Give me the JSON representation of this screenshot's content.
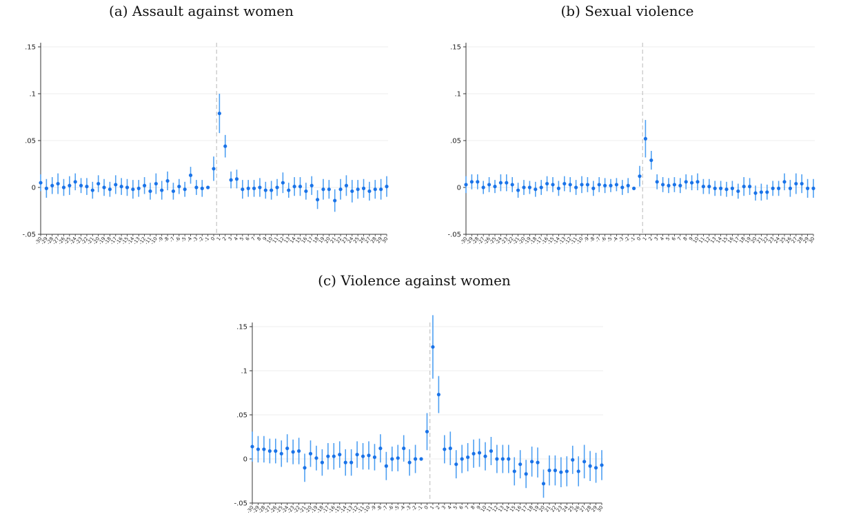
{
  "chart_data": [
    {
      "type": "scatter",
      "title": "(a) Assault against women",
      "xlabel": "",
      "ylabel": "",
      "xlim": [
        -30,
        30
      ],
      "ylim": [
        -0.05,
        0.15
      ],
      "yticks": [
        -0.05,
        0,
        0.05,
        0.1,
        0.15
      ],
      "ytick_labels": [
        "-.05",
        "0",
        ".05",
        ".1",
        ".15"
      ],
      "grid": true,
      "reference_line_x": 0.5,
      "x": [
        -30,
        -29,
        -28,
        -27,
        -26,
        -25,
        -24,
        -23,
        -22,
        -21,
        -20,
        -19,
        -18,
        -17,
        -16,
        -15,
        -14,
        -13,
        -12,
        -11,
        -10,
        -9,
        -8,
        -7,
        -6,
        -5,
        -4,
        -3,
        -2,
        -1,
        0,
        1,
        2,
        3,
        4,
        5,
        6,
        7,
        8,
        9,
        10,
        11,
        12,
        13,
        14,
        15,
        16,
        17,
        18,
        19,
        20,
        21,
        22,
        23,
        24,
        25,
        26,
        27,
        28,
        29,
        30
      ],
      "estimates": [
        0.005,
        -0.001,
        0.002,
        0.004,
        0.0,
        0.002,
        0.006,
        0.002,
        0.001,
        -0.003,
        0.004,
        0.0,
        -0.002,
        0.003,
        0.001,
        0.0,
        -0.002,
        -0.001,
        0.002,
        -0.004,
        0.004,
        -0.003,
        0.007,
        -0.004,
        0.001,
        -0.002,
        0.013,
        0.0,
        -0.001,
        0.0,
        0.02,
        0.079,
        0.044,
        0.008,
        0.009,
        -0.002,
        -0.001,
        -0.001,
        0.0,
        -0.003,
        -0.003,
        0.0,
        0.005,
        -0.003,
        0.001,
        0.001,
        -0.004,
        0.002,
        -0.013,
        -0.002,
        -0.002,
        -0.014,
        -0.002,
        0.002,
        -0.004,
        -0.002,
        -0.001,
        -0.004,
        -0.002,
        -0.002,
        0.001
      ],
      "ci_half": [
        0.009,
        0.01,
        0.009,
        0.011,
        0.009,
        0.01,
        0.009,
        0.008,
        0.009,
        0.009,
        0.009,
        0.009,
        0.008,
        0.01,
        0.009,
        0.009,
        0.01,
        0.009,
        0.009,
        0.009,
        0.011,
        0.01,
        0.01,
        0.009,
        0.008,
        0.008,
        0.009,
        0.008,
        0.009,
        0.001,
        0.013,
        0.021,
        0.012,
        0.009,
        0.01,
        0.01,
        0.009,
        0.009,
        0.01,
        0.009,
        0.01,
        0.009,
        0.011,
        0.008,
        0.01,
        0.01,
        0.009,
        0.01,
        0.01,
        0.011,
        0.01,
        0.012,
        0.011,
        0.011,
        0.012,
        0.01,
        0.01,
        0.01,
        0.01,
        0.011,
        0.011
      ]
    },
    {
      "type": "scatter",
      "title": "(b) Sexual violence",
      "xlabel": "",
      "ylabel": "",
      "xlim": [
        -30,
        30
      ],
      "ylim": [
        -0.05,
        0.15
      ],
      "yticks": [
        -0.05,
        0,
        0.05,
        0.1,
        0.15
      ],
      "ytick_labels": [
        "-.05",
        "0",
        ".05",
        ".1",
        ".15"
      ],
      "grid": true,
      "reference_line_x": 0.5,
      "x": [
        -30,
        -29,
        -28,
        -27,
        -26,
        -25,
        -24,
        -23,
        -22,
        -21,
        -20,
        -19,
        -18,
        -17,
        -16,
        -15,
        -14,
        -13,
        -12,
        -11,
        -10,
        -9,
        -8,
        -7,
        -6,
        -5,
        -4,
        -3,
        -2,
        -1,
        0,
        1,
        2,
        3,
        4,
        5,
        6,
        7,
        8,
        9,
        10,
        11,
        12,
        13,
        14,
        15,
        16,
        17,
        18,
        19,
        20,
        21,
        22,
        23,
        24,
        25,
        26,
        27,
        28,
        29,
        30
      ],
      "estimates": [
        0.003,
        0.006,
        0.006,
        0.0,
        0.003,
        0.001,
        0.005,
        0.005,
        0.003,
        -0.003,
        0.0,
        0.0,
        -0.002,
        0.0,
        0.004,
        0.003,
        -0.001,
        0.004,
        0.003,
        0.0,
        0.003,
        0.003,
        -0.001,
        0.003,
        0.002,
        0.002,
        0.003,
        0.0,
        0.002,
        -0.001,
        0.012,
        0.052,
        0.029,
        0.006,
        0.003,
        0.002,
        0.003,
        0.002,
        0.006,
        0.005,
        0.006,
        0.001,
        0.001,
        -0.001,
        -0.001,
        -0.002,
        -0.001,
        -0.004,
        0.001,
        0.001,
        -0.006,
        -0.005,
        -0.005,
        -0.001,
        -0.001,
        0.006,
        -0.001,
        0.004,
        0.004,
        -0.001,
        -0.001
      ],
      "ci_half": [
        0.009,
        0.008,
        0.008,
        0.007,
        0.008,
        0.007,
        0.009,
        0.009,
        0.008,
        0.008,
        0.008,
        0.007,
        0.008,
        0.008,
        0.008,
        0.008,
        0.008,
        0.008,
        0.008,
        0.008,
        0.009,
        0.008,
        0.008,
        0.008,
        0.008,
        0.007,
        0.007,
        0.008,
        0.008,
        0.001,
        0.011,
        0.02,
        0.01,
        0.008,
        0.008,
        0.008,
        0.008,
        0.008,
        0.008,
        0.008,
        0.009,
        0.008,
        0.008,
        0.008,
        0.008,
        0.008,
        0.008,
        0.008,
        0.01,
        0.009,
        0.008,
        0.009,
        0.008,
        0.008,
        0.008,
        0.009,
        0.009,
        0.011,
        0.01,
        0.01,
        0.01
      ]
    },
    {
      "type": "scatter",
      "title": "(c) Violence against women",
      "xlabel": "",
      "ylabel": "",
      "xlim": [
        -30,
        30
      ],
      "ylim": [
        -0.05,
        0.15
      ],
      "yticks": [
        -0.05,
        0,
        0.05,
        0.1,
        0.15
      ],
      "ytick_labels": [
        "-.05",
        "0",
        ".05",
        ".1",
        ".15"
      ],
      "grid": true,
      "reference_line_x": 0.5,
      "x": [
        -30,
        -29,
        -28,
        -27,
        -26,
        -25,
        -24,
        -23,
        -22,
        -21,
        -20,
        -19,
        -18,
        -17,
        -16,
        -15,
        -14,
        -13,
        -12,
        -11,
        -10,
        -9,
        -8,
        -7,
        -6,
        -5,
        -4,
        -3,
        -2,
        -1,
        0,
        1,
        2,
        3,
        4,
        5,
        6,
        7,
        8,
        9,
        10,
        11,
        12,
        13,
        14,
        15,
        16,
        17,
        18,
        19,
        20,
        21,
        22,
        23,
        24,
        25,
        26,
        27,
        28,
        29,
        30
      ],
      "estimates": [
        0.014,
        0.011,
        0.011,
        0.009,
        0.009,
        0.006,
        0.012,
        0.008,
        0.009,
        -0.01,
        0.006,
        0.001,
        -0.004,
        0.003,
        0.003,
        0.005,
        -0.004,
        -0.004,
        0.005,
        0.003,
        0.004,
        0.002,
        0.012,
        -0.008,
        0.0,
        0.001,
        0.012,
        -0.004,
        0.0,
        0.0,
        0.031,
        0.127,
        0.073,
        0.011,
        0.012,
        -0.006,
        0.0,
        0.002,
        0.006,
        0.007,
        0.003,
        0.009,
        0.0,
        0.0,
        0.0,
        -0.014,
        -0.006,
        -0.017,
        -0.003,
        -0.004,
        -0.028,
        -0.013,
        -0.013,
        -0.015,
        -0.014,
        -0.001,
        -0.014,
        -0.003,
        -0.008,
        -0.01,
        -0.007
      ],
      "ci_half": [
        0.017,
        0.015,
        0.015,
        0.014,
        0.014,
        0.015,
        0.016,
        0.014,
        0.015,
        0.016,
        0.015,
        0.014,
        0.015,
        0.015,
        0.015,
        0.015,
        0.015,
        0.015,
        0.015,
        0.015,
        0.016,
        0.015,
        0.016,
        0.016,
        0.014,
        0.015,
        0.015,
        0.015,
        0.016,
        0.001,
        0.021,
        0.036,
        0.021,
        0.016,
        0.019,
        0.016,
        0.016,
        0.016,
        0.016,
        0.016,
        0.016,
        0.016,
        0.016,
        0.016,
        0.016,
        0.016,
        0.016,
        0.016,
        0.017,
        0.017,
        0.016,
        0.017,
        0.017,
        0.017,
        0.017,
        0.016,
        0.017,
        0.019,
        0.017,
        0.017,
        0.017
      ]
    }
  ]
}
